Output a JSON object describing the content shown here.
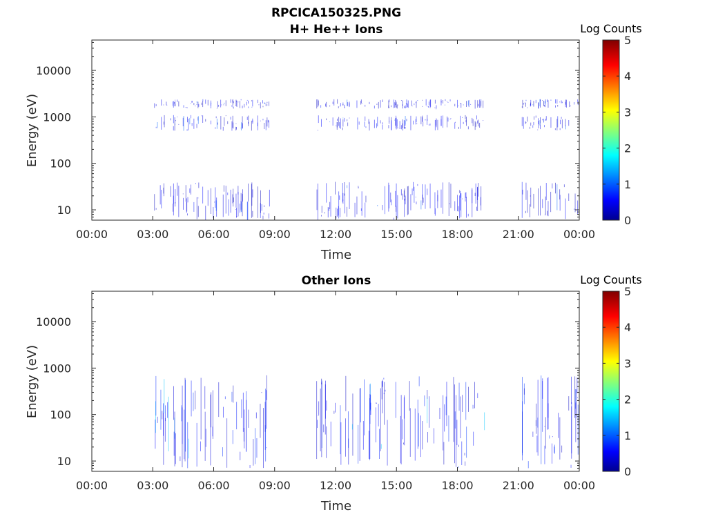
{
  "figure": {
    "title": "RPCICA150325.PNG"
  },
  "chart_data": [
    {
      "type": "heatmap",
      "title": "H+ He++ Ions",
      "xlabel": "Time",
      "ylabel": "Energy (eV)",
      "yscale": "log",
      "xlim": [
        "00:00",
        "24:00"
      ],
      "ylim": [
        6,
        45000
      ],
      "x_tick_labels": [
        "00:00",
        "03:00",
        "06:00",
        "09:00",
        "12:00",
        "15:00",
        "18:00",
        "21:00",
        "00:00"
      ],
      "y_tick_labels": [
        "10",
        "100",
        "1000",
        "10000"
      ],
      "y_ticks": [
        10,
        100,
        1000,
        10000
      ],
      "colorbar": {
        "label": "Log Counts",
        "ticks": [
          "0",
          "1",
          "2",
          "3",
          "4",
          "5"
        ],
        "range": [
          0,
          5
        ],
        "colormap": "jet"
      },
      "data_intervals": [
        [
          "03:00",
          "08:50"
        ],
        [
          "11:00",
          "19:20"
        ],
        [
          "21:10",
          "24:00"
        ]
      ],
      "bands_eV": [
        [
          1500,
          2400
        ],
        [
          500,
          1100
        ],
        [
          6,
          40
        ]
      ],
      "typical_log_counts": 0.5,
      "peak_log_counts": 1.1
    },
    {
      "type": "heatmap",
      "title": "Other Ions",
      "xlabel": "Time",
      "ylabel": "Energy (eV)",
      "yscale": "log",
      "xlim": [
        "00:00",
        "24:00"
      ],
      "ylim": [
        6,
        45000
      ],
      "x_tick_labels": [
        "00:00",
        "03:00",
        "06:00",
        "09:00",
        "12:00",
        "15:00",
        "18:00",
        "21:00",
        "00:00"
      ],
      "y_tick_labels": [
        "10",
        "100",
        "1000",
        "10000"
      ],
      "y_ticks": [
        10,
        100,
        1000,
        10000
      ],
      "colorbar": {
        "label": "Log Counts",
        "ticks": [
          "0",
          "1",
          "2",
          "3",
          "4",
          "5"
        ],
        "range": [
          0,
          5
        ],
        "colormap": "jet"
      },
      "data_intervals": [
        [
          "03:00",
          "08:50"
        ],
        [
          "11:00",
          "19:20"
        ],
        [
          "21:10",
          "24:00"
        ]
      ],
      "bands_eV": [
        [
          7,
          700
        ]
      ],
      "typical_log_counts": 0.6,
      "peak_log_counts": 1.6
    }
  ]
}
